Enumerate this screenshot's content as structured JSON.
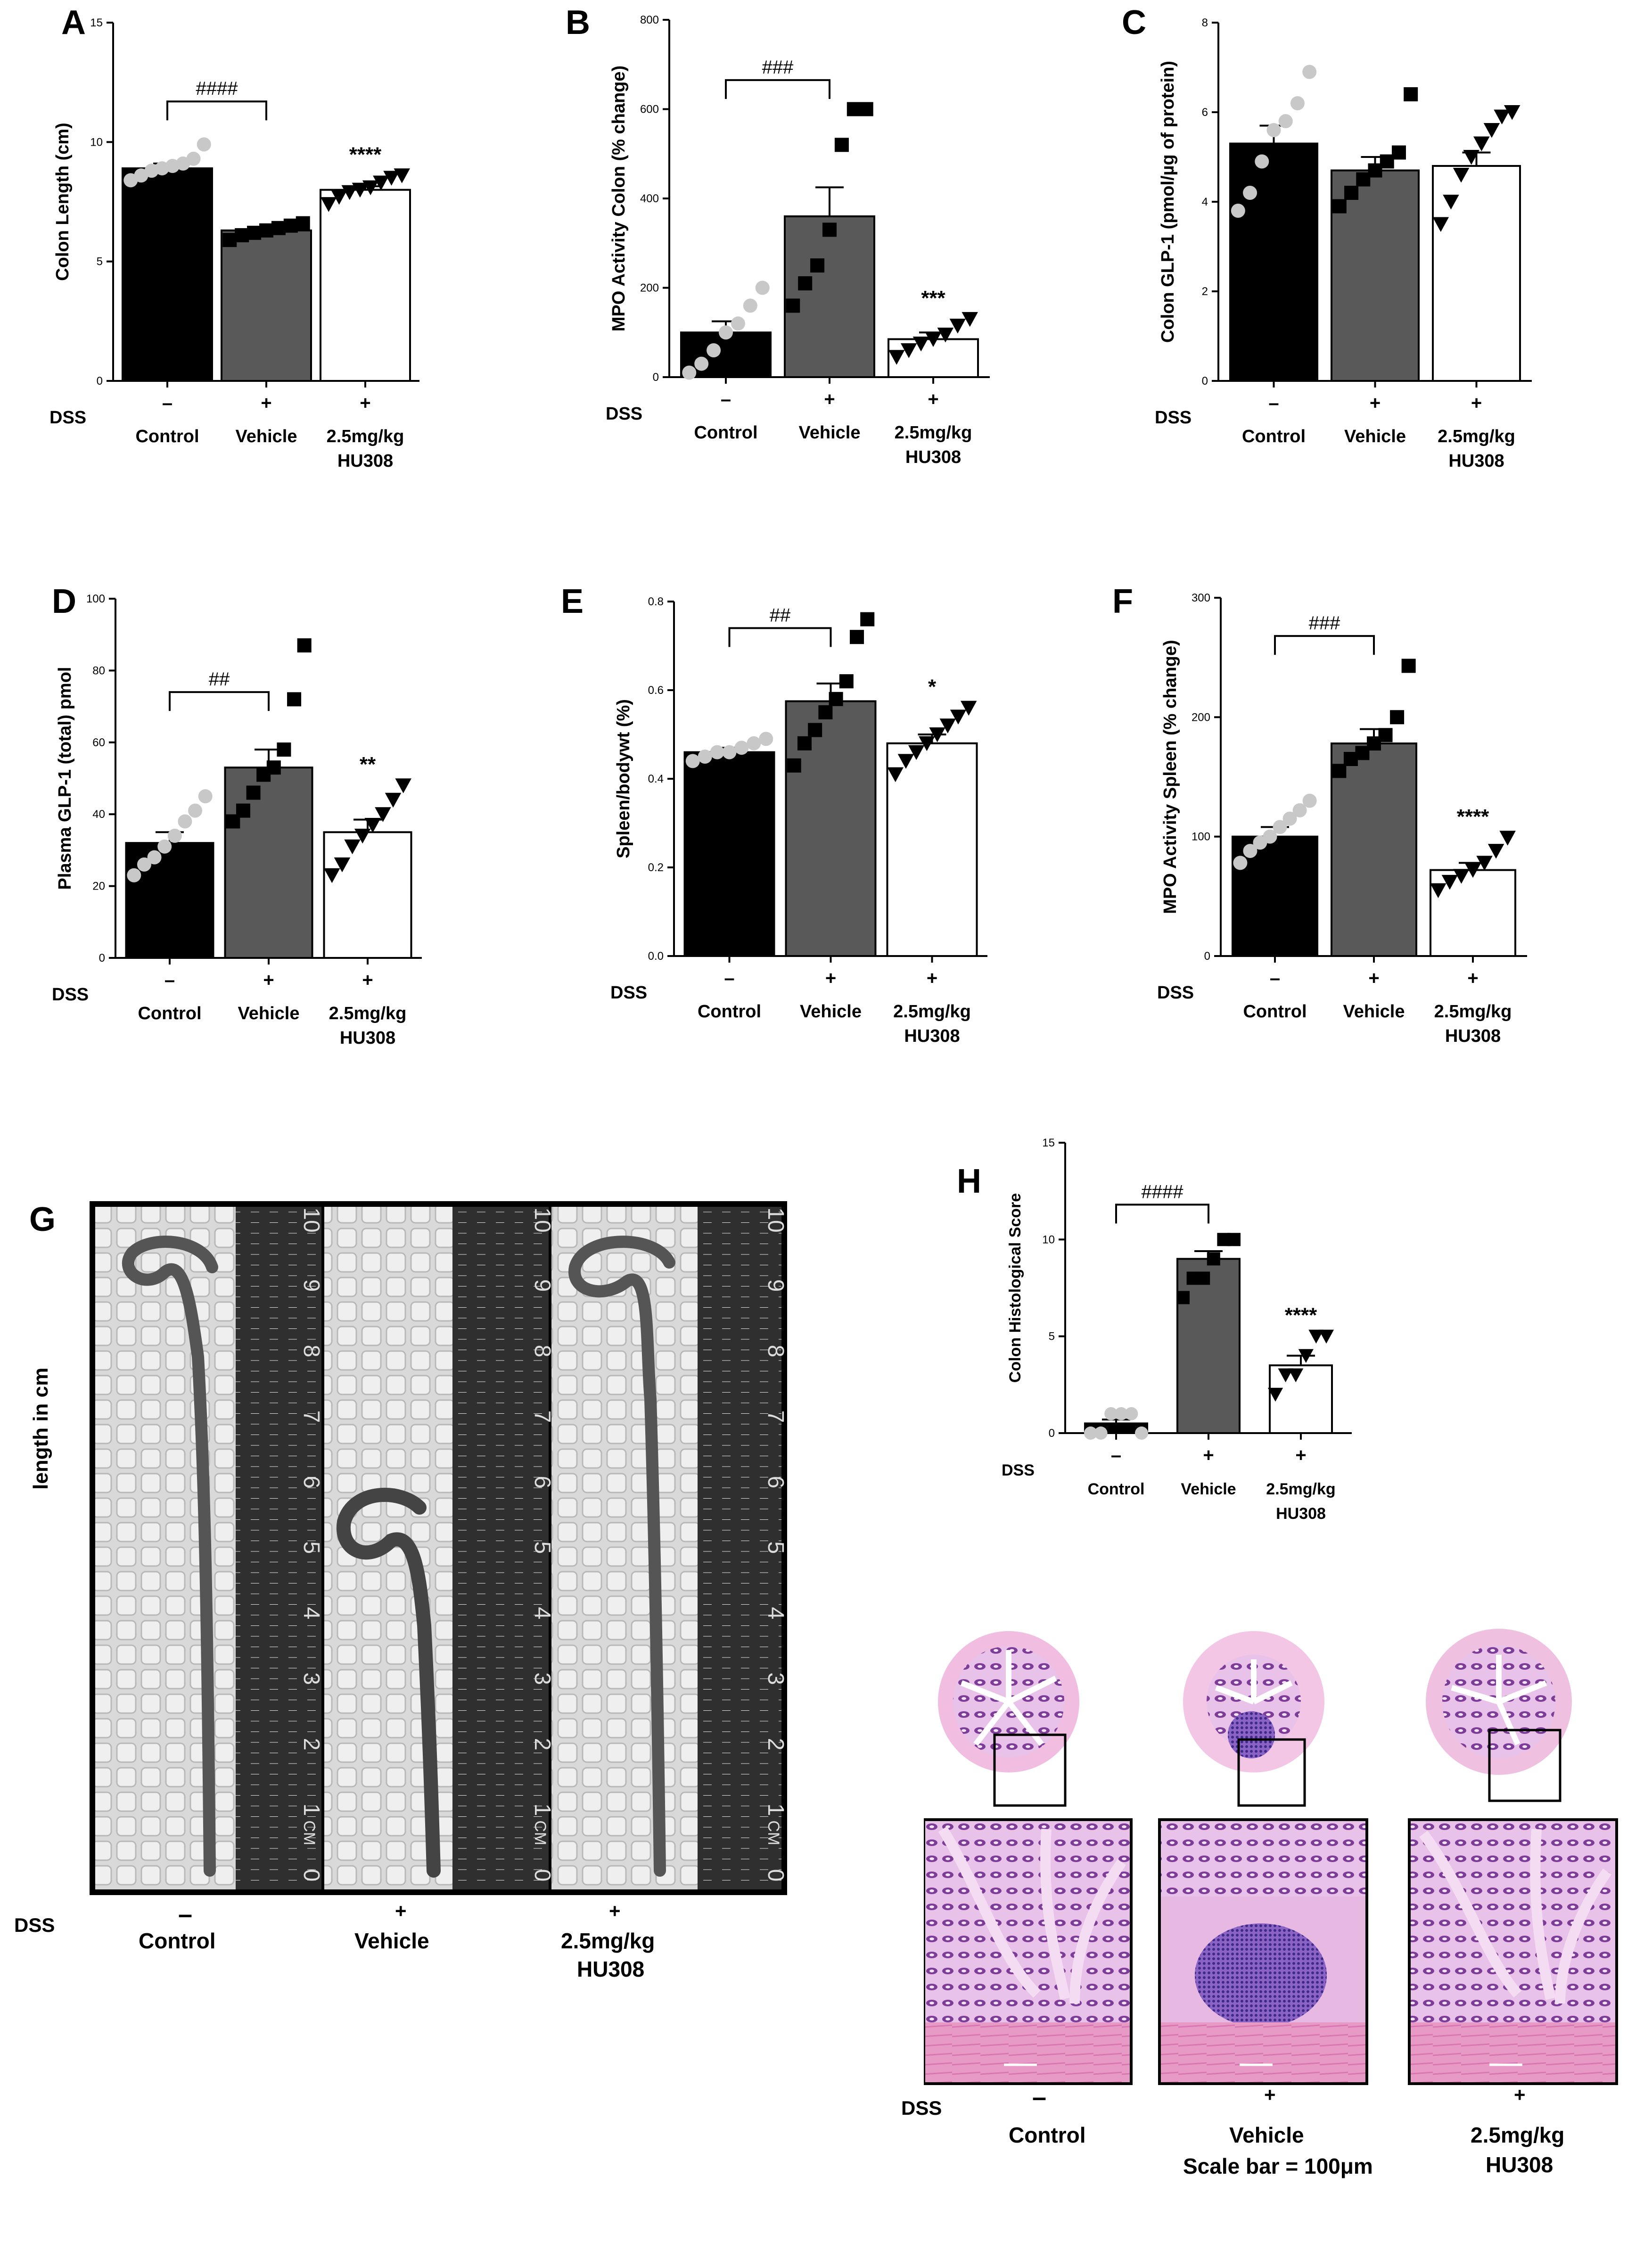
{
  "figure": {
    "photo_axis_label": "length in cm",
    "histology_scale_caption": "Scale bar = 100μm"
  },
  "colors": {
    "control_bar": "#000000",
    "vehicle_bar": "#595959",
    "hu308_bar": "#ffffff",
    "control_points": "#c8c8c8",
    "treated_points": "#000000",
    "he_stain": "#b46ab8"
  },
  "chart_data": [
    {
      "panel": "A",
      "type": "bar",
      "categories": [
        "Control",
        "Vehicle",
        "2.5mg/kg\nHU308"
      ],
      "dss": [
        "–",
        "+",
        "+"
      ],
      "dss_label": "DSS",
      "values": [
        8.9,
        6.3,
        8.0
      ],
      "sem": [
        0.2,
        0.1,
        0.15
      ],
      "points": [
        [
          8.4,
          8.6,
          8.8,
          8.9,
          9.0,
          9.1,
          9.3,
          9.9
        ],
        [
          5.9,
          6.1,
          6.2,
          6.3,
          6.4,
          6.5,
          6.6
        ],
        [
          7.4,
          7.7,
          7.9,
          8.0,
          8.1,
          8.3,
          8.5,
          8.6
        ]
      ],
      "ylabel": "Colon Length (cm)",
      "ylim": [
        0,
        15
      ],
      "yticks": [
        0,
        5,
        10,
        15
      ],
      "brackets": [
        {
          "from": 0,
          "to": 1,
          "label": "####",
          "y": 11.7
        }
      ],
      "stars": [
        null,
        null,
        "****"
      ]
    },
    {
      "panel": "B",
      "type": "bar",
      "categories": [
        "Control",
        "Vehicle",
        "2.5mg/kg\nHU308"
      ],
      "dss": [
        "–",
        "+",
        "+"
      ],
      "dss_label": "DSS",
      "values": [
        100,
        360,
        85
      ],
      "sem": [
        25,
        65,
        15
      ],
      "points": [
        [
          10,
          30,
          60,
          100,
          120,
          160,
          200
        ],
        [
          160,
          210,
          250,
          330,
          520,
          600,
          600
        ],
        [
          45,
          60,
          75,
          85,
          95,
          115,
          130
        ]
      ],
      "ylabel": "MPO Activity Colon (% change)",
      "ylim": [
        0,
        800
      ],
      "yticks": [
        0,
        200,
        400,
        600,
        800
      ],
      "brackets": [
        {
          "from": 0,
          "to": 1,
          "label": "###",
          "y": 665
        }
      ],
      "stars": [
        null,
        null,
        "***"
      ]
    },
    {
      "panel": "C",
      "type": "bar",
      "categories": [
        "Control",
        "Vehicle",
        "2.5mg/kg\nHU308"
      ],
      "dss": [
        "–",
        "+",
        "+"
      ],
      "dss_label": "DSS",
      "values": [
        5.3,
        4.7,
        4.8
      ],
      "sem": [
        0.4,
        0.3,
        0.3
      ],
      "points": [
        [
          3.8,
          4.2,
          4.9,
          5.6,
          5.8,
          6.2,
          6.9
        ],
        [
          3.9,
          4.2,
          4.5,
          4.7,
          4.9,
          5.1,
          6.4
        ],
        [
          3.5,
          4.0,
          4.6,
          5.0,
          5.3,
          5.6,
          5.9,
          6.0
        ]
      ],
      "ylabel": "Colon GLP-1 (pmol/µg of protein)",
      "ylim": [
        0,
        8
      ],
      "yticks": [
        0,
        2,
        4,
        6,
        8
      ],
      "brackets": [],
      "stars": [
        null,
        null,
        null
      ]
    },
    {
      "panel": "D",
      "type": "bar",
      "categories": [
        "Control",
        "Vehicle",
        "2.5mg/kg\nHU308"
      ],
      "dss": [
        "–",
        "+",
        "+"
      ],
      "dss_label": "DSS",
      "values": [
        32,
        53,
        35
      ],
      "sem": [
        3,
        5,
        3.5
      ],
      "points": [
        [
          23,
          26,
          28,
          31,
          34,
          38,
          41,
          45
        ],
        [
          38,
          41,
          46,
          51,
          53,
          58,
          72,
          87
        ],
        [
          23,
          26,
          31,
          34,
          37,
          40,
          44,
          48
        ]
      ],
      "ylabel": "Plasma GLP-1 (total) pmol",
      "ylim": [
        0,
        100
      ],
      "yticks": [
        0,
        20,
        40,
        60,
        80,
        100
      ],
      "brackets": [
        {
          "from": 0,
          "to": 1,
          "label": "##",
          "y": 74
        }
      ],
      "stars": [
        null,
        null,
        "**"
      ]
    },
    {
      "panel": "E",
      "type": "bar",
      "categories": [
        "Control",
        "Vehicle",
        "2.5mg/kg\nHU308"
      ],
      "dss": [
        "–",
        "+",
        "+"
      ],
      "dss_label": "DSS",
      "values": [
        0.46,
        0.575,
        0.48
      ],
      "sem": [
        0.01,
        0.04,
        0.02
      ],
      "points": [
        [
          0.44,
          0.45,
          0.46,
          0.46,
          0.47,
          0.48,
          0.49
        ],
        [
          0.43,
          0.48,
          0.51,
          0.55,
          0.58,
          0.62,
          0.72,
          0.76
        ],
        [
          0.41,
          0.44,
          0.46,
          0.48,
          0.5,
          0.52,
          0.54,
          0.56
        ]
      ],
      "ylabel": "Spleen/bodywt (%)",
      "ylim": [
        0,
        0.8
      ],
      "yticks": [
        0,
        0.2,
        0.4,
        0.6,
        0.8
      ],
      "ytick_labels": [
        "0.0",
        "0.2",
        "0.4",
        "0.6",
        "0.8"
      ],
      "brackets": [
        {
          "from": 0,
          "to": 1,
          "label": "##",
          "y": 0.74
        }
      ],
      "stars": [
        null,
        null,
        "*"
      ]
    },
    {
      "panel": "F",
      "type": "bar",
      "categories": [
        "Control",
        "Vehicle",
        "2.5mg/kg\nHU308"
      ],
      "dss": [
        "–",
        "+",
        "+"
      ],
      "dss_label": "DSS",
      "values": [
        100,
        178,
        72
      ],
      "sem": [
        8,
        12,
        6
      ],
      "points": [
        [
          78,
          88,
          95,
          100,
          108,
          115,
          122,
          130
        ],
        [
          155,
          165,
          170,
          178,
          185,
          200,
          243
        ],
        [
          55,
          62,
          67,
          72,
          78,
          88,
          99
        ]
      ],
      "ylabel": "MPO Activity Spleen (% change)",
      "ylim": [
        0,
        300
      ],
      "yticks": [
        0,
        100,
        200,
        300
      ],
      "brackets": [
        {
          "from": 0,
          "to": 1,
          "label": "###",
          "y": 268
        }
      ],
      "stars": [
        null,
        null,
        "****"
      ]
    },
    {
      "panel": "H",
      "type": "bar",
      "categories": [
        "Control",
        "Vehicle",
        "2.5mg/kg\nHU308"
      ],
      "dss": [
        "–",
        "+",
        "+"
      ],
      "dss_label": "DSS",
      "values": [
        0.5,
        9.0,
        3.5
      ],
      "sem": [
        0.2,
        0.4,
        0.5
      ],
      "points": [
        [
          0,
          0,
          1,
          1,
          1,
          0
        ],
        [
          7,
          8,
          8,
          9,
          10,
          10
        ],
        [
          2,
          3,
          3,
          4,
          5,
          5
        ]
      ],
      "ylabel": "Colon Histological Score",
      "ylim": [
        0,
        15
      ],
      "yticks": [
        0,
        5,
        10,
        15
      ],
      "brackets": [
        {
          "from": 0,
          "to": 1,
          "label": "####",
          "y": 11.8
        }
      ],
      "stars": [
        null,
        null,
        "****"
      ]
    }
  ],
  "photo_panel": {
    "label": "G",
    "dss_label": "DSS",
    "ruler_unit_label": "CM",
    "ruler_numbers": [
      "0",
      "1",
      "2",
      "3",
      "4",
      "5",
      "6",
      "7",
      "8",
      "9",
      "10"
    ],
    "groups": [
      {
        "dss": "–",
        "label": "Control",
        "label2": ""
      },
      {
        "dss": "+",
        "label": "Vehicle",
        "label2": ""
      },
      {
        "dss": "+",
        "label": "2.5mg/kg",
        "label2": "HU308"
      }
    ]
  },
  "histology_panel": {
    "dss_label": "DSS",
    "groups": [
      {
        "dss": "–",
        "label": "Control",
        "label2": ""
      },
      {
        "dss": "+",
        "label": "Vehicle",
        "label2": ""
      },
      {
        "dss": "+",
        "label": "2.5mg/kg",
        "label2": "HU308"
      }
    ]
  }
}
